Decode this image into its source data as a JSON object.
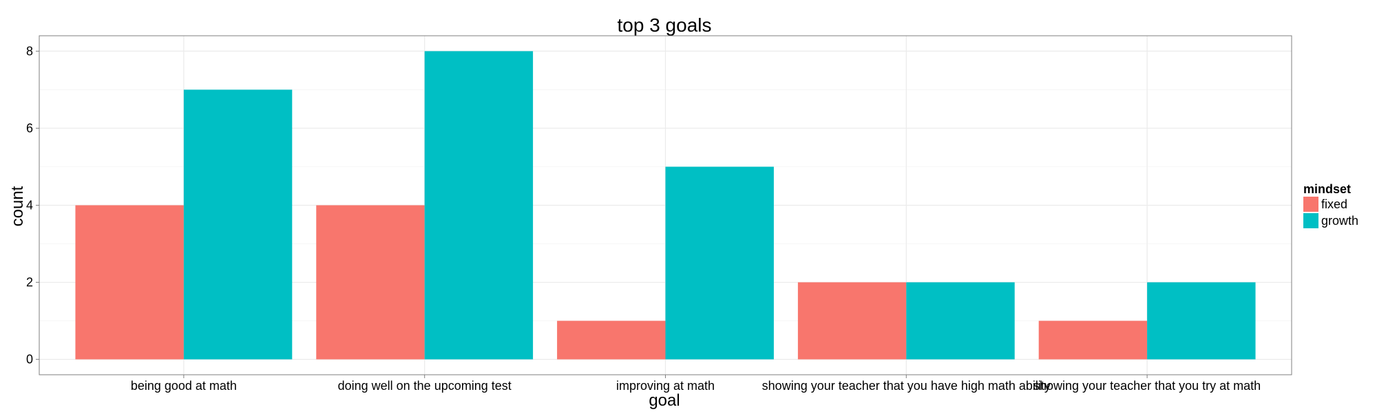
{
  "chart_data": {
    "type": "bar",
    "title": "top 3 goals",
    "xlabel": "goal",
    "ylabel": "count",
    "categories": [
      "being good at math",
      "doing well on the upcoming test",
      "improving at math",
      "showing your teacher that you have high math ability",
      "showing your teacher that you try at math"
    ],
    "series": [
      {
        "name": "fixed",
        "values": [
          4,
          4,
          1,
          2,
          1
        ],
        "color": "#F8766D"
      },
      {
        "name": "growth",
        "values": [
          7,
          8,
          5,
          2,
          2
        ],
        "color": "#00BFC4"
      }
    ],
    "ylim": [
      -0.4,
      8.4
    ],
    "yticks": [
      0,
      2,
      4,
      6,
      8
    ],
    "grid": true,
    "legend": {
      "title": "mindset",
      "position": "right"
    }
  }
}
